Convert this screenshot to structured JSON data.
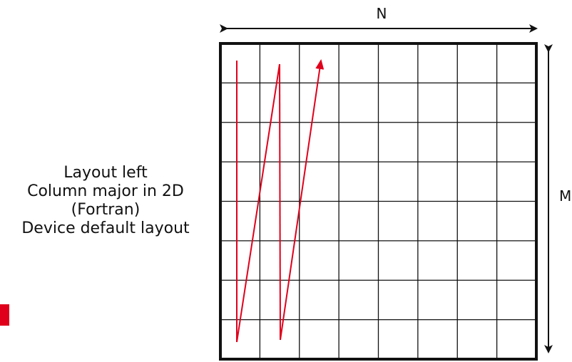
{
  "labels": {
    "n": "N",
    "m": "M"
  },
  "caption": {
    "lines": [
      "Layout left",
      "Column major in 2D",
      "(Fortran)",
      "Device default layout"
    ]
  },
  "grid": {
    "rows": 8,
    "cols": 8
  },
  "colors": {
    "grid": "#111111",
    "path": "#e0001b",
    "accent": "#e0001b"
  }
}
